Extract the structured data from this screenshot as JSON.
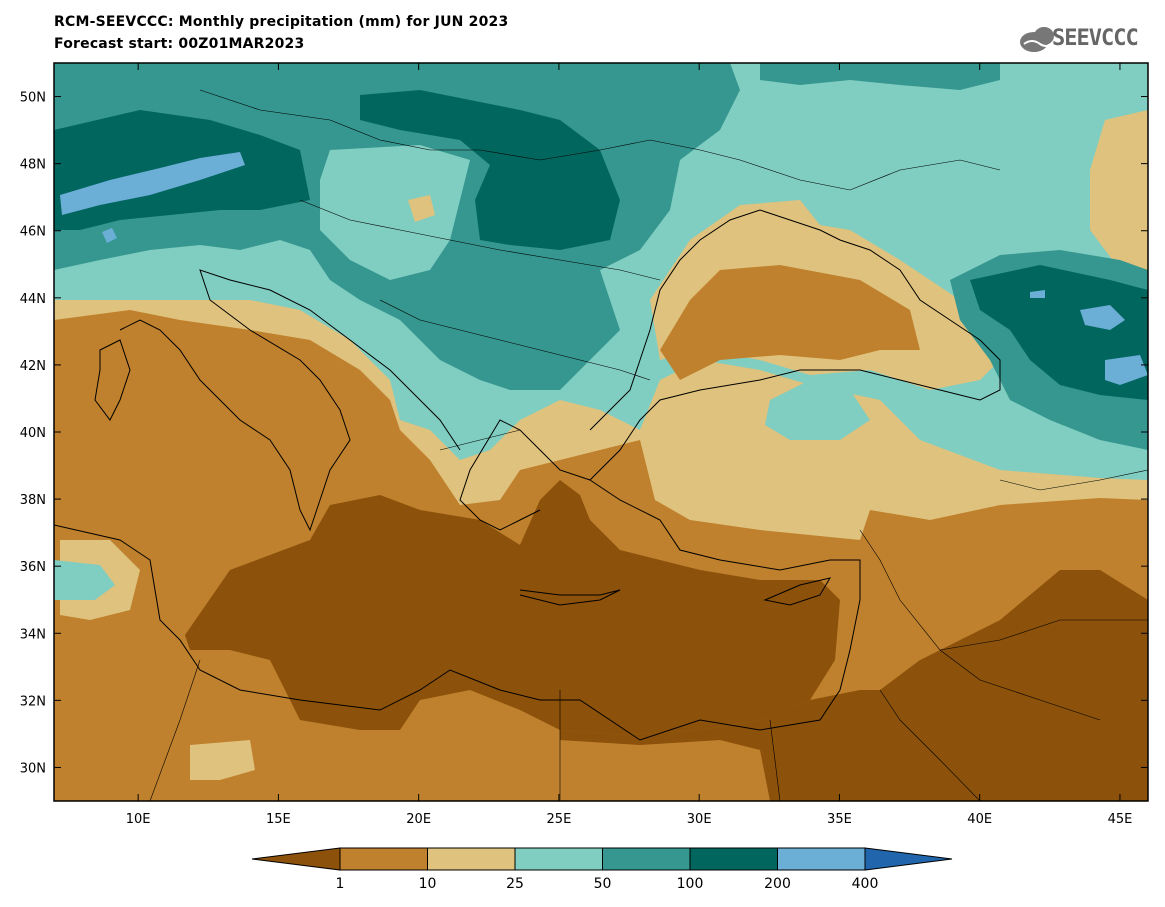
{
  "header": {
    "title_line1": "RCM-SEEVCCC: Monthly precipitation (mm) for JUN 2023",
    "title_line2": "Forecast start: 00Z01MAR2023",
    "logo_text": "SEEVCCC"
  },
  "map": {
    "projection": "lat-lon",
    "lon_range": [
      7,
      46
    ],
    "lat_range": [
      29,
      51
    ],
    "lon_ticks": [
      {
        "value": 10,
        "label": "10E"
      },
      {
        "value": 15,
        "label": "15E"
      },
      {
        "value": 20,
        "label": "20E"
      },
      {
        "value": 25,
        "label": "25E"
      },
      {
        "value": 30,
        "label": "30E"
      },
      {
        "value": 35,
        "label": "35E"
      },
      {
        "value": 40,
        "label": "40E"
      },
      {
        "value": 45,
        "label": "45E"
      }
    ],
    "lat_ticks": [
      {
        "value": 30,
        "label": "30N"
      },
      {
        "value": 32,
        "label": "32N"
      },
      {
        "value": 34,
        "label": "34N"
      },
      {
        "value": 36,
        "label": "36N"
      },
      {
        "value": 38,
        "label": "38N"
      },
      {
        "value": 40,
        "label": "40N"
      },
      {
        "value": 42,
        "label": "42N"
      },
      {
        "value": 44,
        "label": "44N"
      },
      {
        "value": 46,
        "label": "46N"
      },
      {
        "value": 48,
        "label": "48N"
      },
      {
        "value": 50,
        "label": "50N"
      }
    ]
  },
  "colorbar": {
    "labels": [
      "1",
      "10",
      "25",
      "50",
      "100",
      "200",
      "400"
    ],
    "colors": [
      "#8c510a",
      "#bf812d",
      "#dfc27d",
      "#80cdc1",
      "#35978f",
      "#01665e",
      "#6baed6",
      "#2166ac"
    ]
  }
}
